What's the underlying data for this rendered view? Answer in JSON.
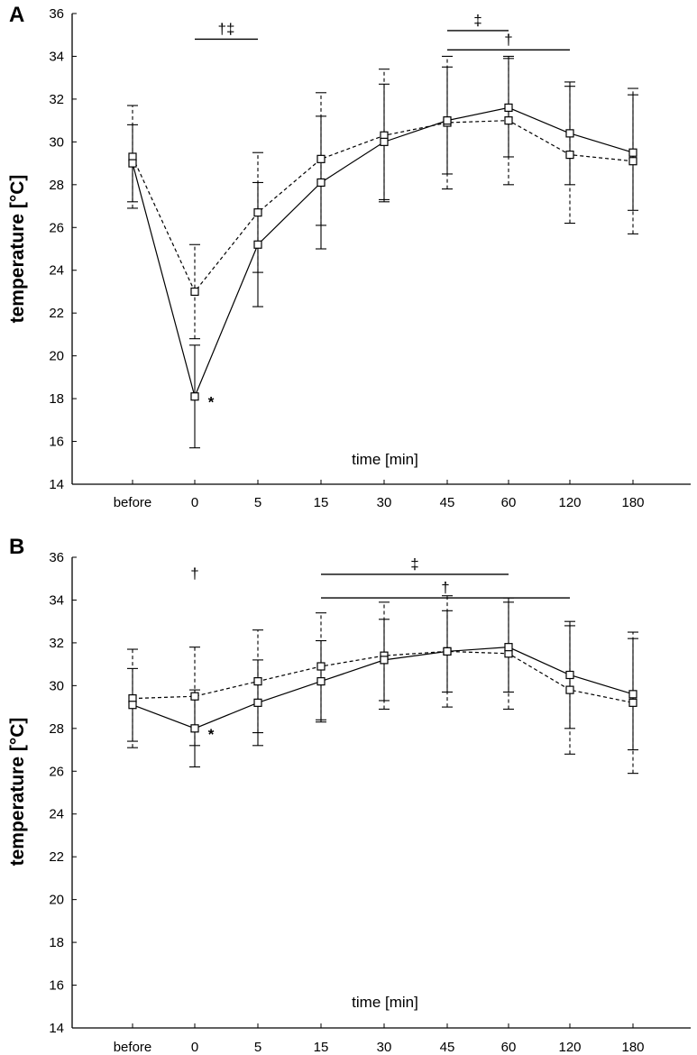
{
  "chart_data": [
    {
      "type": "line",
      "panel_label": "A",
      "title": "",
      "xlabel": "time [min]",
      "ylabel": "temperature [°C]",
      "categories": [
        "before",
        "0",
        "5",
        "15",
        "30",
        "45",
        "60",
        "120",
        "180"
      ],
      "yticks": [
        "14",
        "16",
        "18",
        "20",
        "22",
        "24",
        "26",
        "28",
        "30",
        "32",
        "34",
        "36"
      ],
      "ylim": [
        14,
        36
      ],
      "grid": false,
      "series": [
        {
          "name": "solid",
          "style": "solid",
          "values": [
            29.0,
            18.1,
            25.2,
            28.1,
            30.0,
            31.0,
            31.6,
            30.4,
            29.5
          ],
          "errors": [
            1.8,
            2.4,
            2.9,
            3.1,
            2.7,
            2.5,
            2.3,
            2.4,
            2.7
          ]
        },
        {
          "name": "dashed",
          "style": "dashed",
          "values": [
            29.3,
            23.0,
            26.7,
            29.2,
            30.3,
            30.9,
            31.0,
            29.4,
            29.1
          ],
          "errors": [
            2.4,
            2.2,
            2.8,
            3.1,
            3.1,
            3.1,
            3.0,
            3.2,
            3.4
          ]
        }
      ],
      "brackets": [
        {
          "from": "0",
          "to": "5",
          "y": 34.8,
          "label": "†‡"
        },
        {
          "from": "45",
          "to": "60",
          "y": 35.2,
          "label": "‡"
        },
        {
          "from": "45",
          "to": "120",
          "y": 34.3,
          "label": "†"
        }
      ],
      "annotations": [
        {
          "at": "0",
          "y": 18.1,
          "text": "*"
        }
      ]
    },
    {
      "type": "line",
      "panel_label": "B",
      "title": "",
      "xlabel": "time [min]",
      "ylabel": "temperature [°C]",
      "categories": [
        "before",
        "0",
        "5",
        "15",
        "30",
        "45",
        "60",
        "120",
        "180"
      ],
      "yticks": [
        "14",
        "16",
        "18",
        "20",
        "22",
        "24",
        "26",
        "28",
        "30",
        "32",
        "34",
        "36"
      ],
      "ylim": [
        14,
        36
      ],
      "grid": false,
      "series": [
        {
          "name": "solid",
          "style": "solid",
          "values": [
            29.1,
            28.0,
            29.2,
            30.2,
            31.2,
            31.6,
            31.8,
            30.5,
            29.6
          ],
          "errors": [
            1.7,
            1.8,
            2.0,
            1.9,
            1.9,
            1.9,
            2.1,
            2.5,
            2.6
          ]
        },
        {
          "name": "dashed",
          "style": "dashed",
          "values": [
            29.4,
            29.5,
            30.2,
            30.9,
            31.4,
            31.6,
            31.5,
            29.8,
            29.2
          ],
          "errors": [
            2.3,
            2.3,
            2.4,
            2.5,
            2.5,
            2.6,
            2.6,
            3.0,
            3.3
          ]
        }
      ],
      "brackets": [
        {
          "from": "15",
          "to": "60",
          "y": 35.2,
          "label": "‡"
        },
        {
          "from": "15",
          "to": "120",
          "y": 34.1,
          "label": "†"
        }
      ],
      "annotations": [
        {
          "at": "0",
          "y": 35.0,
          "text": "†"
        },
        {
          "at": "0",
          "y": 28.0,
          "text": "*"
        }
      ]
    }
  ]
}
